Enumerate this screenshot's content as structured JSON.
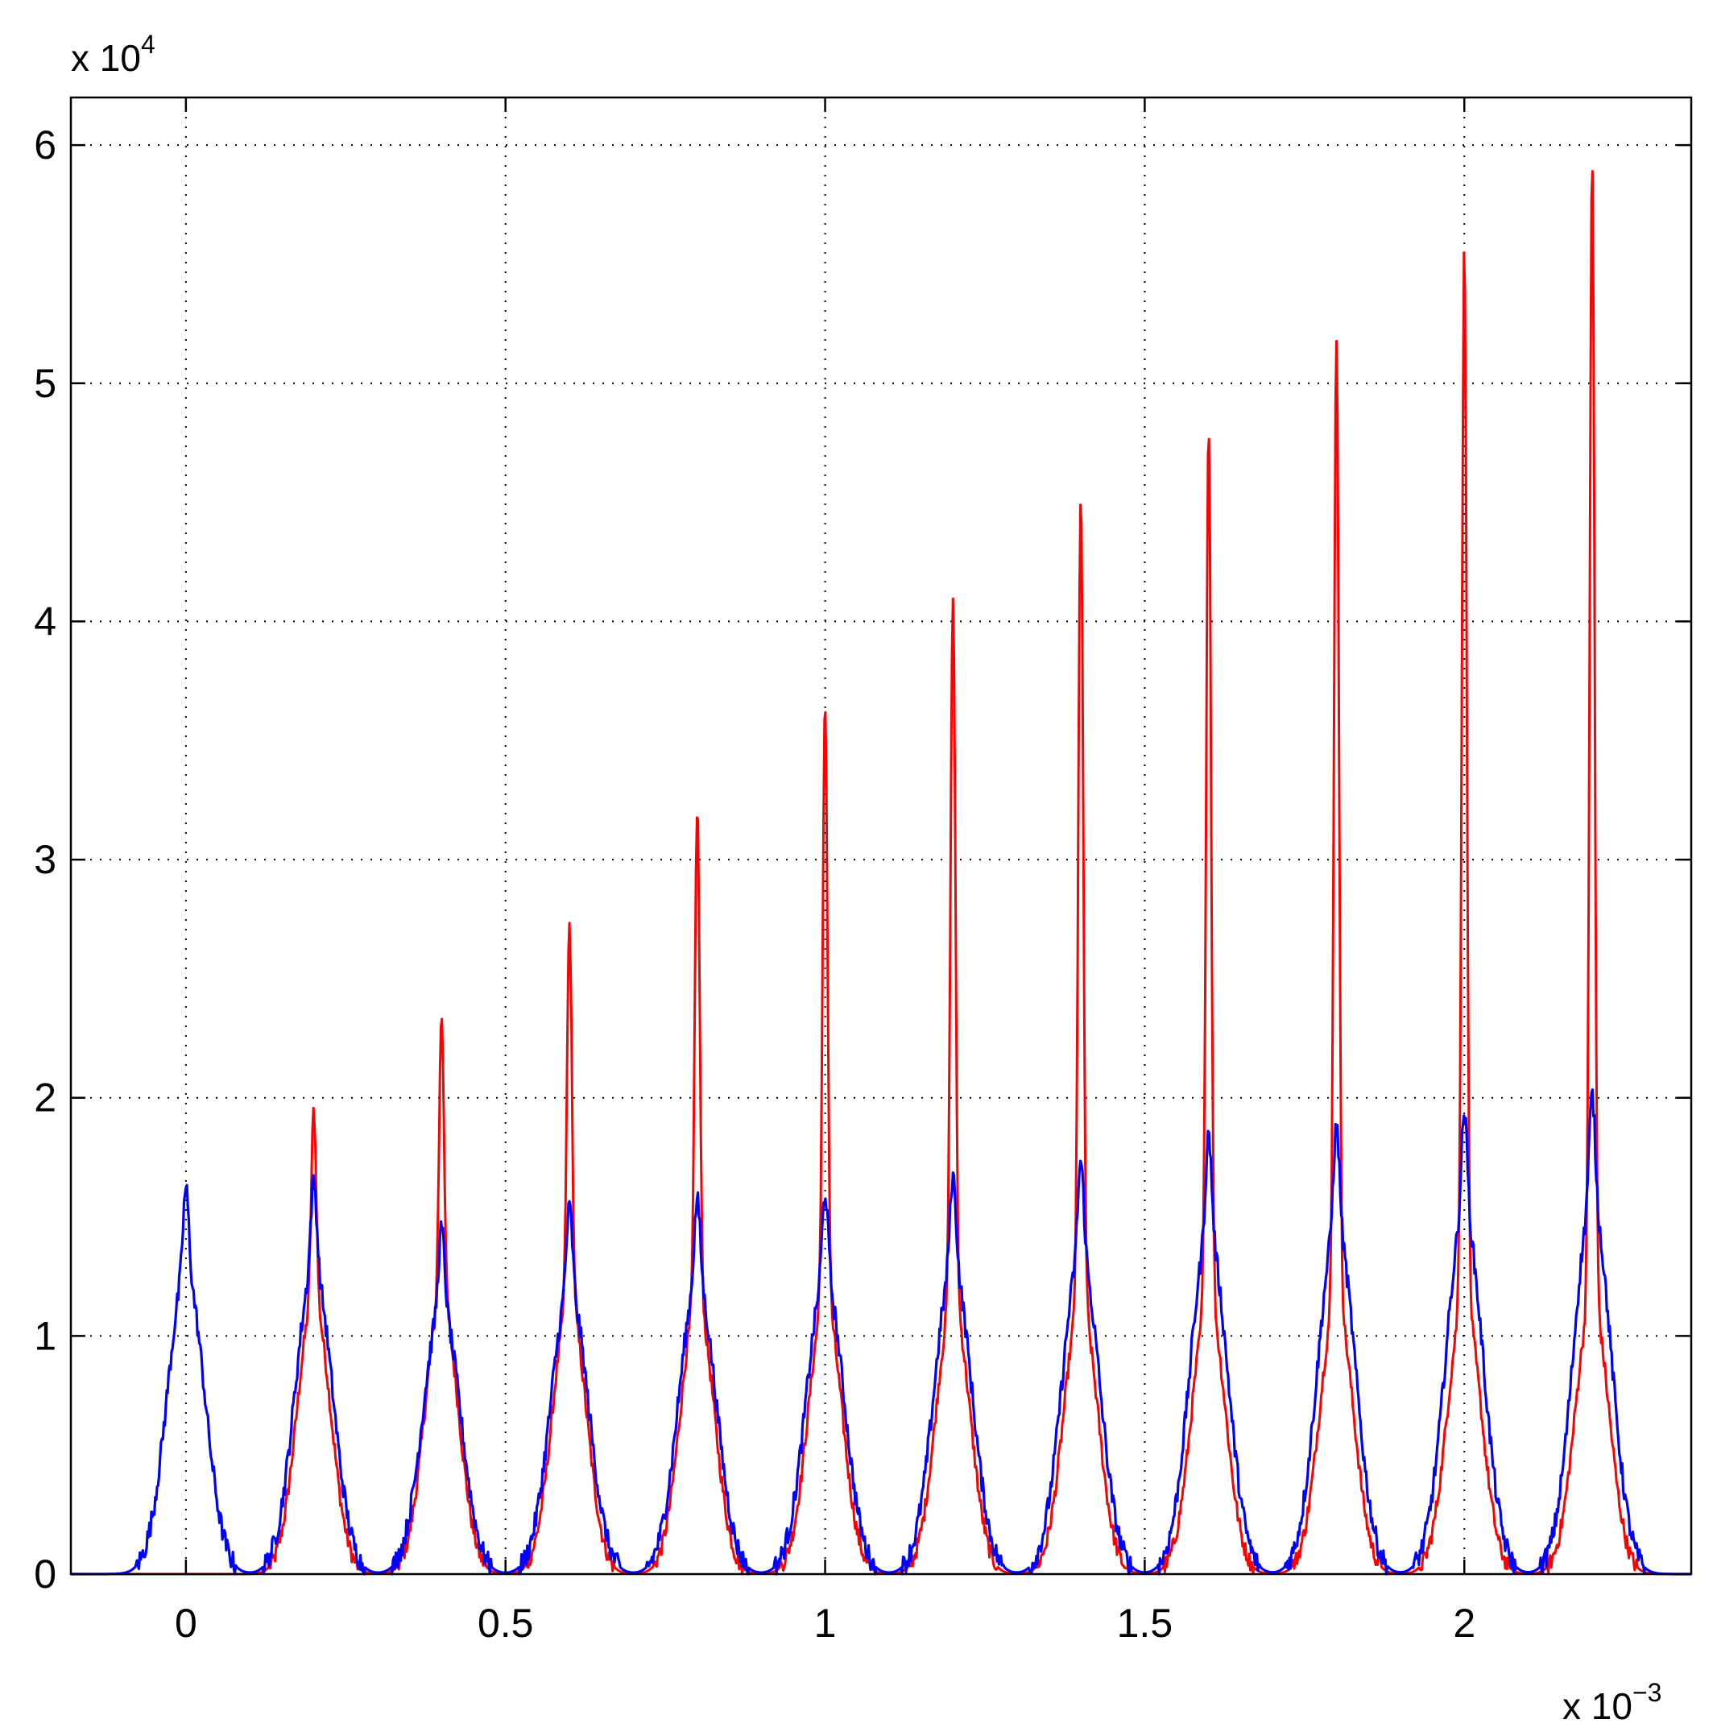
{
  "chart_data": {
    "type": "line",
    "grid": true,
    "legend": "none",
    "xlim": [
      -0.00018,
      0.002355
    ],
    "ylim": [
      0,
      62000
    ],
    "x_ticks": [
      0,
      0.0005,
      0.001,
      0.0015,
      0.002
    ],
    "x_tick_labels": [
      "0",
      "0.5",
      "1",
      "1.5",
      "2"
    ],
    "y_ticks": [
      0,
      10000,
      20000,
      30000,
      40000,
      50000,
      60000
    ],
    "y_tick_labels": [
      "0",
      "1",
      "2",
      "3",
      "4",
      "5",
      "6"
    ],
    "x_multiplier": {
      "base": "x 10",
      "exponent": "−3"
    },
    "y_multiplier": {
      "base": "x 10",
      "exponent": "4"
    },
    "series": [
      {
        "color": "#ff0000",
        "peak_x": [
          0.0002,
          0.0004,
          0.0006,
          0.0008,
          0.001,
          0.0012,
          0.0014,
          0.0016,
          0.0018,
          0.002,
          0.0022
        ],
        "peak_y": [
          19500,
          23500,
          27300,
          32200,
          36500,
          41000,
          45400,
          48300,
          52000,
          55600,
          59200
        ]
      },
      {
        "color": "#0000ff",
        "peak_x": [
          0,
          0.0002,
          0.0004,
          0.0006,
          0.0008,
          0.001,
          0.0012,
          0.0014,
          0.0016,
          0.0018,
          0.002,
          0.0022
        ],
        "peak_y": [
          16200,
          16500,
          14500,
          15400,
          15700,
          16000,
          16700,
          17300,
          18400,
          18800,
          19400,
          20100
        ]
      }
    ]
  }
}
